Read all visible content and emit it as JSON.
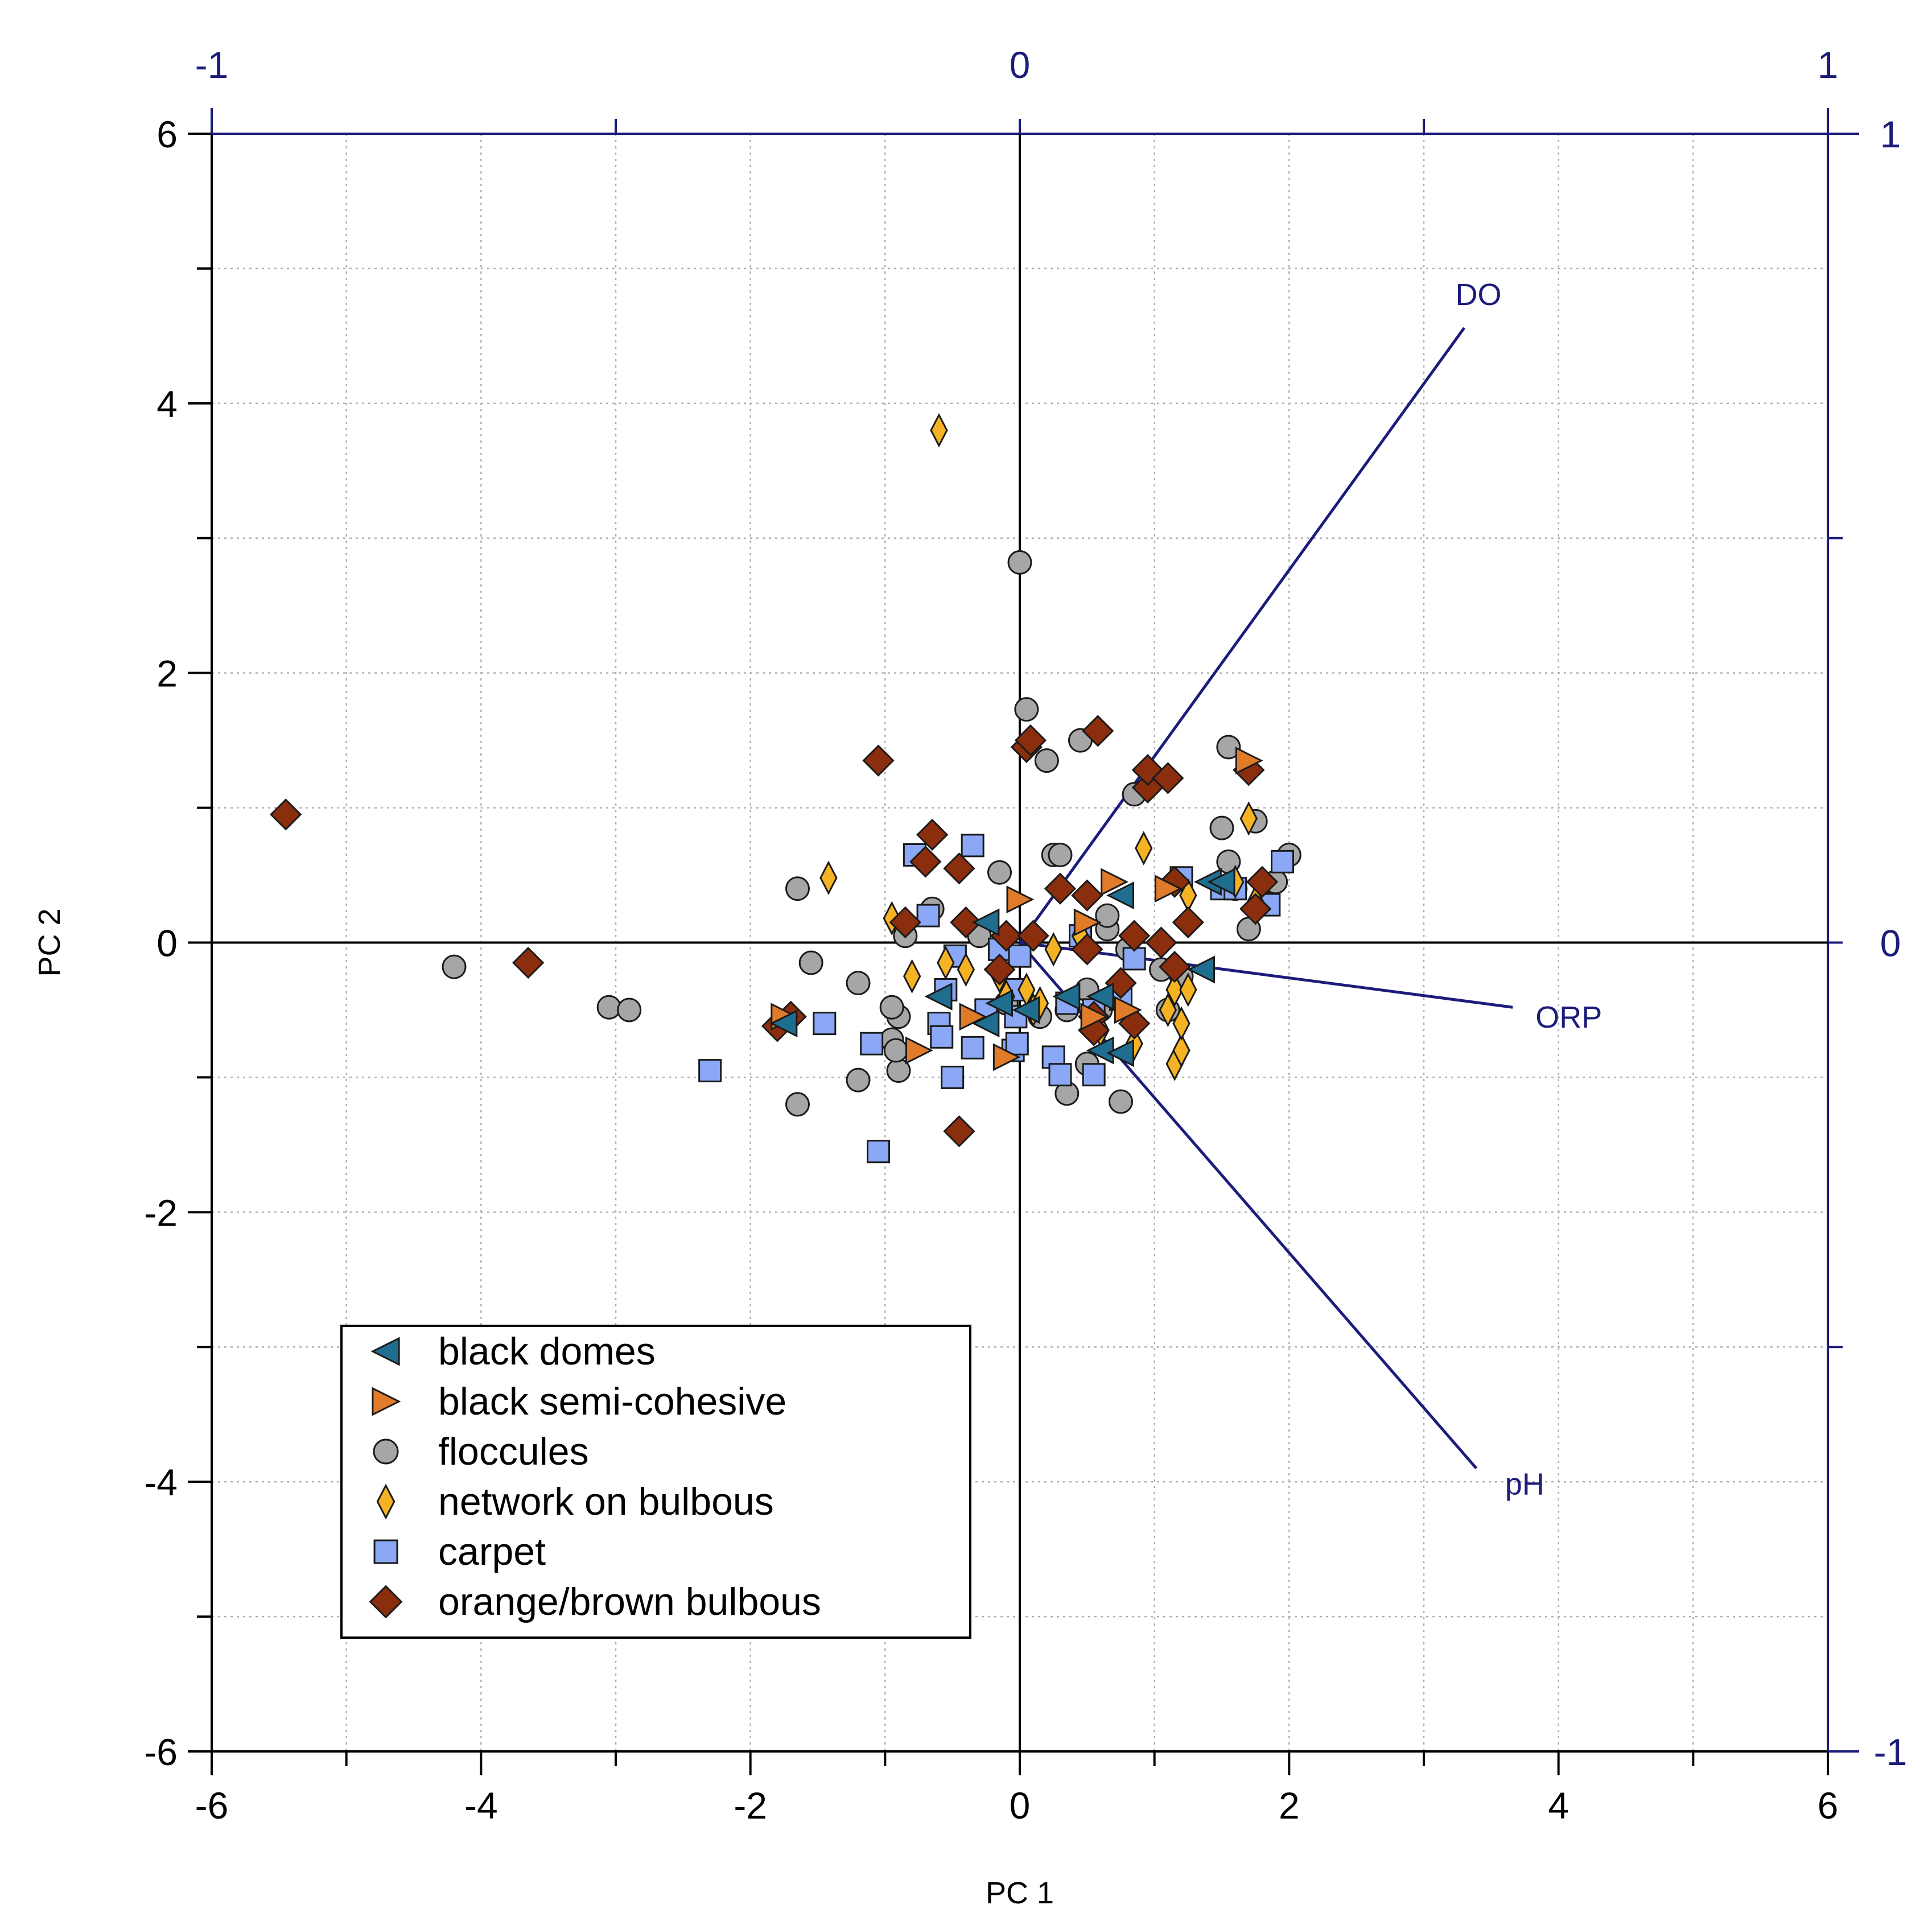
{
  "chart_data": {
    "type": "scatter",
    "xlabel": "PC 1",
    "ylabel": "PC 2",
    "xlim": [
      -6,
      6
    ],
    "ylim": [
      -6,
      6
    ],
    "x_ticks": [
      "-6",
      "-4",
      "-2",
      "0",
      "2",
      "4",
      "6"
    ],
    "y_ticks": [
      "-6",
      "-4",
      "-2",
      "0",
      "2",
      "4",
      "6"
    ],
    "secondary_x_ticks": [
      "-1",
      "0",
      "1"
    ],
    "secondary_y_ticks": [
      "-1",
      "0",
      "1"
    ],
    "secondary_lim": [
      -1,
      1
    ],
    "grid": true,
    "legend_position": "bottom-left",
    "colors": {
      "axis_secondary": "#1c1c7a",
      "black domes": "#1f6e8f",
      "black semi-cohesive": "#e07b2a",
      "floccules": "#a6a6a6",
      "network on bulbous": "#f5b324",
      "carpet": "#8aa8f5",
      "orange/brown bulbous": "#8b2e0e"
    },
    "vectors": [
      {
        "label": "DO",
        "x": 0.55,
        "y": 0.76
      },
      {
        "label": "ORP",
        "x": 0.61,
        "y": -0.08
      },
      {
        "label": "pH",
        "x": 0.565,
        "y": -0.65
      }
    ],
    "series": [
      {
        "name": "black domes",
        "marker": "triangle-left",
        "points": [
          [
            -1.75,
            -0.6
          ],
          [
            -0.6,
            -0.4
          ],
          [
            -0.25,
            -0.6
          ],
          [
            -0.25,
            0.15
          ],
          [
            -0.15,
            -0.45
          ],
          [
            0.05,
            -0.5
          ],
          [
            0.35,
            -0.4
          ],
          [
            0.6,
            -0.4
          ],
          [
            0.6,
            -0.8
          ],
          [
            0.75,
            0.35
          ],
          [
            0.75,
            -0.82
          ],
          [
            1.35,
            -0.2
          ],
          [
            1.4,
            0.45
          ],
          [
            1.5,
            0.45
          ]
        ]
      },
      {
        "name": "black semi-cohesive",
        "marker": "triangle-right",
        "points": [
          [
            -1.75,
            -0.55
          ],
          [
            -0.75,
            -0.8
          ],
          [
            -0.35,
            -0.55
          ],
          [
            -0.1,
            -0.85
          ],
          [
            0,
            0.32
          ],
          [
            0.5,
            0.15
          ],
          [
            0.55,
            -0.55
          ],
          [
            0.7,
            0.45
          ],
          [
            0.8,
            -0.5
          ],
          [
            1.1,
            0.4
          ],
          [
            1.7,
            1.35
          ]
        ]
      },
      {
        "name": "floccules",
        "marker": "circle",
        "points": [
          [
            -4.2,
            -0.18
          ],
          [
            -3.05,
            -0.48
          ],
          [
            -2.9,
            -0.5
          ],
          [
            -1.65,
            -1.2
          ],
          [
            -1.65,
            0.4
          ],
          [
            -1.55,
            -0.15
          ],
          [
            -1.2,
            -0.3
          ],
          [
            -1.2,
            -1.02
          ],
          [
            -0.95,
            -0.72
          ],
          [
            -0.9,
            -0.55
          ],
          [
            -0.9,
            -0.95
          ],
          [
            -0.95,
            -0.48
          ],
          [
            -0.92,
            -0.8
          ],
          [
            -0.85,
            0.05
          ],
          [
            -0.65,
            0.25
          ],
          [
            -0.3,
            0.05
          ],
          [
            -0.15,
            0.52
          ],
          [
            -0.1,
            -0.45
          ],
          [
            0,
            2.82
          ],
          [
            0.05,
            1.73
          ],
          [
            0.15,
            -0.55
          ],
          [
            0.2,
            1.35
          ],
          [
            0.25,
            0.65
          ],
          [
            0.3,
            0.65
          ],
          [
            0.35,
            -0.5
          ],
          [
            0.35,
            -1.12
          ],
          [
            0.45,
            1.5
          ],
          [
            0.5,
            -0.35
          ],
          [
            0.5,
            -0.9
          ],
          [
            0.6,
            -0.5
          ],
          [
            0.65,
            0.1
          ],
          [
            0.65,
            0.2
          ],
          [
            0.75,
            -1.18
          ],
          [
            0.8,
            -0.05
          ],
          [
            0.85,
            1.1
          ],
          [
            1.05,
            -0.2
          ],
          [
            1.1,
            -0.5
          ],
          [
            1.2,
            -0.25
          ],
          [
            1.5,
            0.85
          ],
          [
            1.55,
            0.6
          ],
          [
            1.55,
            1.45
          ],
          [
            1.6,
            0.4
          ],
          [
            1.7,
            0.1
          ],
          [
            1.75,
            0.9
          ],
          [
            1.8,
            0.3
          ],
          [
            1.9,
            0.45
          ],
          [
            2,
            0.65
          ]
        ]
      },
      {
        "name": "network on bulbous",
        "marker": "diamond-tall",
        "points": [
          [
            -0.6,
            3.8
          ],
          [
            -1.42,
            0.48
          ],
          [
            -0.95,
            0.18
          ],
          [
            -0.8,
            -0.25
          ],
          [
            -0.55,
            -0.15
          ],
          [
            -0.4,
            -0.2
          ],
          [
            -0.15,
            -0.25
          ],
          [
            -0.1,
            -0.4
          ],
          [
            0.05,
            -0.35
          ],
          [
            0.1,
            -0.5
          ],
          [
            0.15,
            -0.45
          ],
          [
            0.25,
            -0.05
          ],
          [
            0.45,
            0.05
          ],
          [
            0.6,
            -0.65
          ],
          [
            0.85,
            -0.75
          ],
          [
            0.92,
            0.7
          ],
          [
            1.1,
            -0.5
          ],
          [
            1.15,
            -0.35
          ],
          [
            1.15,
            -0.9
          ],
          [
            1.2,
            -0.8
          ],
          [
            1.2,
            -0.6
          ],
          [
            1.25,
            -0.35
          ],
          [
            1.25,
            0.35
          ],
          [
            1.6,
            0.45
          ],
          [
            1.7,
            0.92
          ],
          [
            1.75,
            0.3
          ]
        ]
      },
      {
        "name": "carpet",
        "marker": "square",
        "points": [
          [
            -2.3,
            -0.95
          ],
          [
            -1.45,
            -0.6
          ],
          [
            -1.1,
            -0.75
          ],
          [
            -1.05,
            -1.55
          ],
          [
            -0.78,
            0.65
          ],
          [
            -0.68,
            0.2
          ],
          [
            -0.6,
            -0.6
          ],
          [
            -0.58,
            -0.7
          ],
          [
            -0.55,
            -0.35
          ],
          [
            -0.5,
            -1
          ],
          [
            -0.48,
            -0.1
          ],
          [
            -0.35,
            -0.78
          ],
          [
            -0.35,
            0.72
          ],
          [
            -0.25,
            -0.5
          ],
          [
            -0.15,
            -0.05
          ],
          [
            -0.05,
            -0.35
          ],
          [
            -0.05,
            -0.8
          ],
          [
            -0.03,
            -0.55
          ],
          [
            -0.02,
            -0.75
          ],
          [
            0,
            -0.1
          ],
          [
            0.25,
            -0.85
          ],
          [
            0.3,
            -0.98
          ],
          [
            0.35,
            -0.45
          ],
          [
            0.45,
            0.05
          ],
          [
            0.55,
            -0.5
          ],
          [
            0.55,
            -0.98
          ],
          [
            0.75,
            -0.42
          ],
          [
            0.85,
            -0.12
          ],
          [
            1.2,
            0.48
          ],
          [
            1.5,
            0.4
          ],
          [
            1.6,
            0.4
          ],
          [
            1.85,
            0.28
          ],
          [
            1.95,
            0.6
          ]
        ]
      },
      {
        "name": "orange/brown bulbous",
        "marker": "diamond",
        "points": [
          [
            -5.45,
            0.95
          ],
          [
            -3.65,
            -0.15
          ],
          [
            -1.8,
            -0.62
          ],
          [
            -1.7,
            -0.55
          ],
          [
            -1.05,
            1.35
          ],
          [
            -0.85,
            0.15
          ],
          [
            -0.7,
            0.6
          ],
          [
            -0.65,
            0.8
          ],
          [
            -0.45,
            -1.4
          ],
          [
            -0.45,
            0.55
          ],
          [
            -0.4,
            0.15
          ],
          [
            -0.15,
            -0.2
          ],
          [
            -0.1,
            0.05
          ],
          [
            0.05,
            1.45
          ],
          [
            0.08,
            1.5
          ],
          [
            0.1,
            0.05
          ],
          [
            0.3,
            0.4
          ],
          [
            0.5,
            0.35
          ],
          [
            0.5,
            -0.05
          ],
          [
            0.55,
            -0.55
          ],
          [
            0.55,
            -0.65
          ],
          [
            0.58,
            1.57
          ],
          [
            0.75,
            -0.3
          ],
          [
            0.85,
            -0.6
          ],
          [
            0.85,
            0.05
          ],
          [
            0.95,
            1.15
          ],
          [
            0.95,
            1.28
          ],
          [
            1.05,
            0
          ],
          [
            1.1,
            1.22
          ],
          [
            1.15,
            -0.18
          ],
          [
            1.15,
            0.45
          ],
          [
            1.25,
            0.15
          ],
          [
            1.7,
            1.28
          ],
          [
            1.75,
            0.25
          ],
          [
            1.8,
            0.45
          ]
        ]
      }
    ]
  }
}
